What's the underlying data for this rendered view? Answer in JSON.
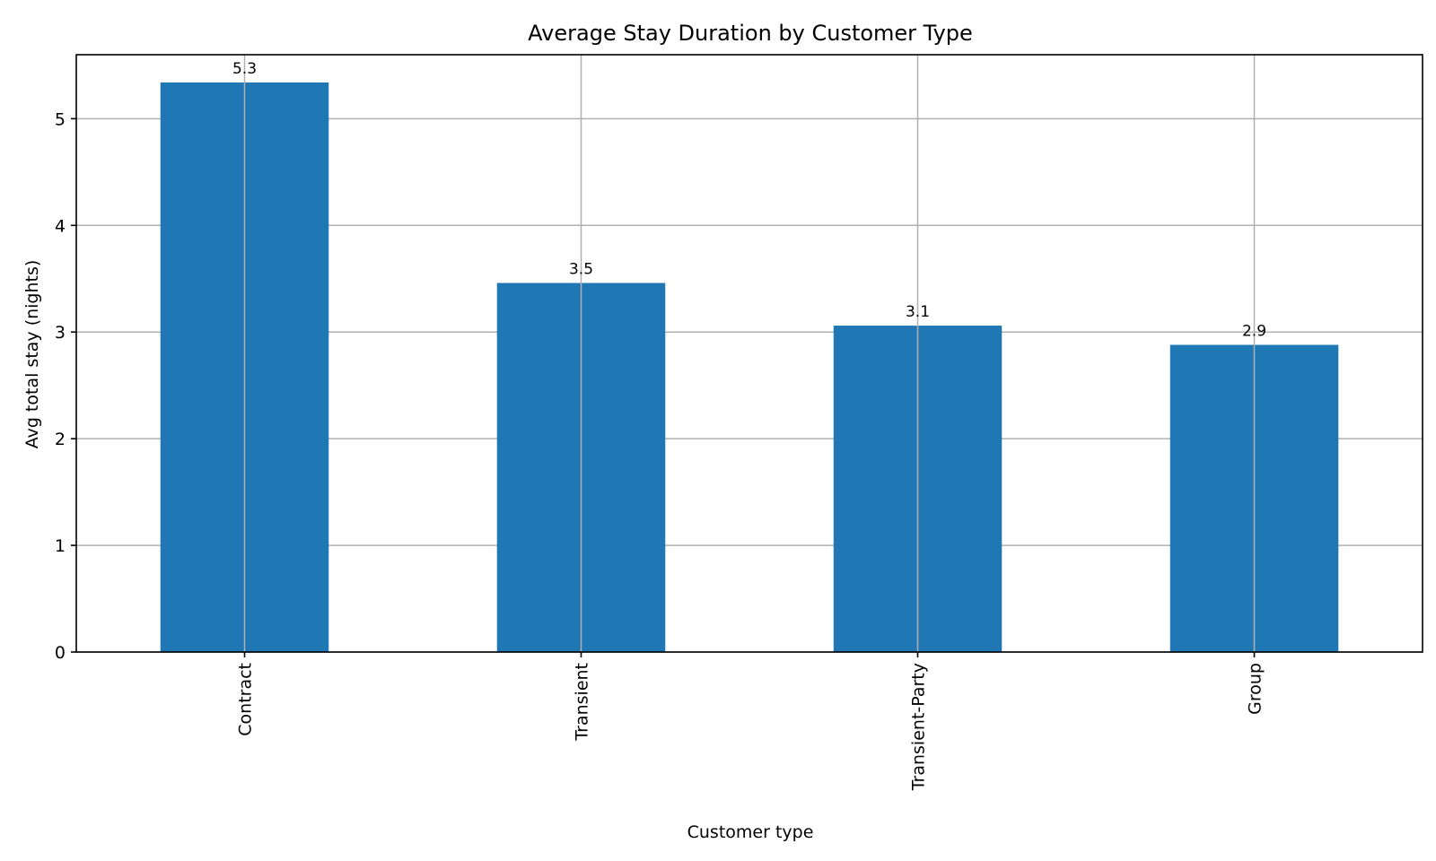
{
  "chart_data": {
    "type": "bar",
    "title": "Average Stay Duration by Customer Type",
    "xlabel": "Customer type",
    "ylabel": "Avg total stay (nights)",
    "categories": [
      "Contract",
      "Transient",
      "Transient-Party",
      "Group"
    ],
    "values": [
      5.34,
      3.46,
      3.06,
      2.88
    ],
    "data_labels": [
      "5.3",
      "3.5",
      "3.1",
      "2.9"
    ],
    "ylim": [
      0,
      5.6
    ],
    "yticks": [
      0,
      1,
      2,
      3,
      4,
      5
    ],
    "grid": true,
    "bar_color": "#1f77b4",
    "x_tick_rotation": "vertical"
  }
}
